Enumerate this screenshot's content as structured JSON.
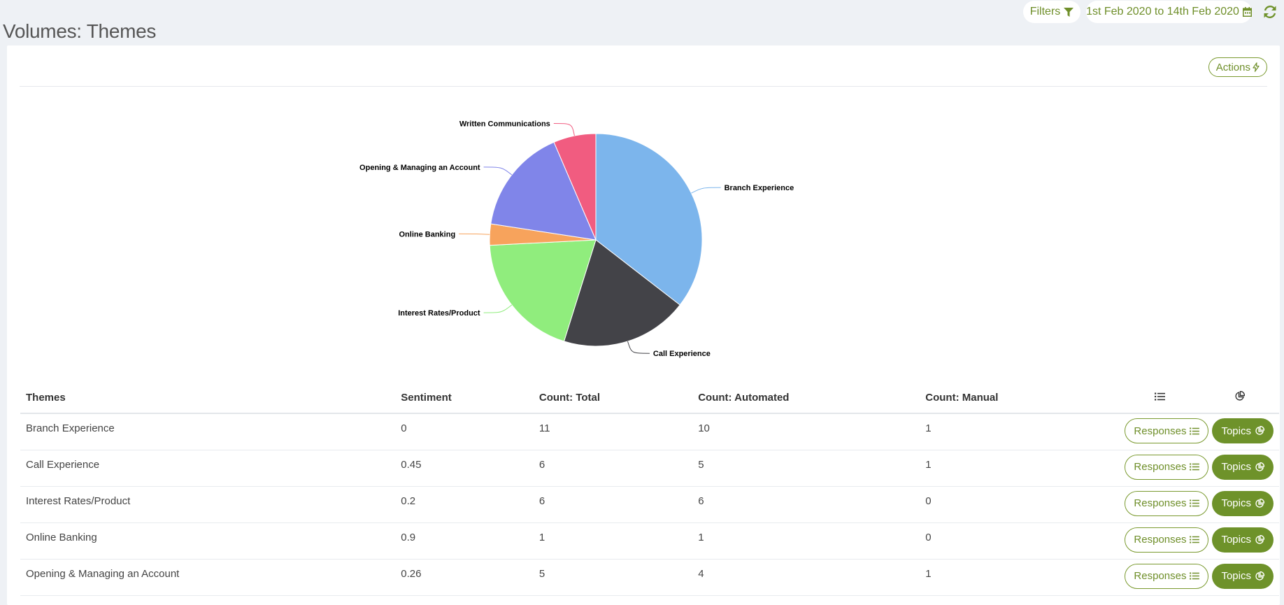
{
  "page": {
    "title": "Volumes: Themes"
  },
  "toolbar": {
    "filters_label": "Filters",
    "date_range_label": "1st Feb 2020 to 14th Feb 2020"
  },
  "card": {
    "actions_label": "Actions"
  },
  "icons": {
    "filter": "filter-icon",
    "calendar": "calendar-icon",
    "refresh": "refresh-icon",
    "bolt": "bolt-icon",
    "list": "list-icon",
    "pie": "pie-chart-icon"
  },
  "colors": {
    "accent": "#6e922a",
    "accent_text": "#6f8f2a",
    "background": "#eef1f5"
  },
  "chart_data": {
    "type": "pie",
    "start_angle_deg": 0,
    "slices": [
      {
        "label": "Branch Experience",
        "value": 11,
        "color": "#7cb5ec"
      },
      {
        "label": "Call Experience",
        "value": 6,
        "color": "#434348"
      },
      {
        "label": "Interest Rates/Product",
        "value": 6,
        "color": "#90ed7d"
      },
      {
        "label": "Online Banking",
        "value": 1,
        "color": "#f7a35c"
      },
      {
        "label": "Opening & Managing an Account",
        "value": 5,
        "color": "#8085e9"
      },
      {
        "label": "Written Communications",
        "value": 2,
        "color": "#f15c80"
      }
    ]
  },
  "table": {
    "headers": {
      "themes": "Themes",
      "sentiment": "Sentiment",
      "count_total": "Count: Total",
      "count_automated": "Count: Automated",
      "count_manual": "Count: Manual"
    },
    "responses_label": "Responses",
    "topics_label": "Topics",
    "rows": [
      {
        "theme": "Branch Experience",
        "sentiment": "0",
        "total": "11",
        "automated": "10",
        "manual": "1"
      },
      {
        "theme": "Call Experience",
        "sentiment": "0.45",
        "total": "6",
        "automated": "5",
        "manual": "1"
      },
      {
        "theme": "Interest Rates/Product",
        "sentiment": "0.2",
        "total": "6",
        "automated": "6",
        "manual": "0"
      },
      {
        "theme": "Online Banking",
        "sentiment": "0.9",
        "total": "1",
        "automated": "1",
        "manual": "0"
      },
      {
        "theme": "Opening & Managing an Account",
        "sentiment": "0.26",
        "total": "5",
        "automated": "4",
        "manual": "1"
      }
    ]
  }
}
